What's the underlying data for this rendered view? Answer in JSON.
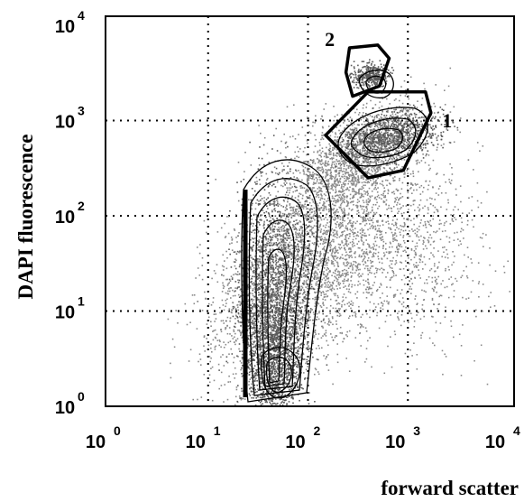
{
  "chart_data": {
    "type": "scatter",
    "subtype": "flow-cytometry density contour plot",
    "xlabel": "forward scatter",
    "ylabel": "DAPI fluorescence",
    "xscale": "log",
    "yscale": "log",
    "xlim": [
      1,
      10000
    ],
    "ylim": [
      1,
      20000
    ],
    "x_ticks": [
      {
        "base": "10",
        "exp": "0",
        "value": 1
      },
      {
        "base": "10",
        "exp": "1",
        "value": 10
      },
      {
        "base": "10",
        "exp": "2",
        "value": 100
      },
      {
        "base": "10",
        "exp": "3",
        "value": 1000
      },
      {
        "base": "10",
        "exp": "4",
        "value": 10000
      }
    ],
    "y_ticks": [
      {
        "base": "10",
        "exp": "0",
        "value": 1
      },
      {
        "base": "10",
        "exp": "1",
        "value": 10
      },
      {
        "base": "10",
        "exp": "2",
        "value": 100
      },
      {
        "base": "10",
        "exp": "3",
        "value": 1000
      },
      {
        "base": "10",
        "exp": "4",
        "value": 10000
      }
    ],
    "grid": true,
    "gates": [
      {
        "label": "1",
        "polygon": [
          [
            150,
            700
          ],
          [
            400,
            2000
          ],
          [
            1500,
            2000
          ],
          [
            1700,
            1200
          ],
          [
            900,
            300
          ],
          [
            400,
            250
          ]
        ]
      },
      {
        "label": "2",
        "polygon": [
          [
            240,
            3200
          ],
          [
            260,
            5800
          ],
          [
            500,
            6200
          ],
          [
            650,
            4500
          ],
          [
            520,
            2300
          ],
          [
            280,
            1800
          ]
        ]
      }
    ],
    "populations": [
      {
        "name_shown": false,
        "center": [
          28,
          3
        ],
        "spread": "large vertical cluster from y=1 to y=300"
      },
      {
        "name_shown": false,
        "center": [
          700,
          700
        ],
        "note": "gate 1 cluster"
      },
      {
        "name_shown": false,
        "center": [
          420,
          3000
        ],
        "note": "gate 2 cluster"
      }
    ],
    "colors": {
      "points": "#8a8a8a",
      "dense": "#5a5a5a",
      "lines": "#000000"
    }
  }
}
